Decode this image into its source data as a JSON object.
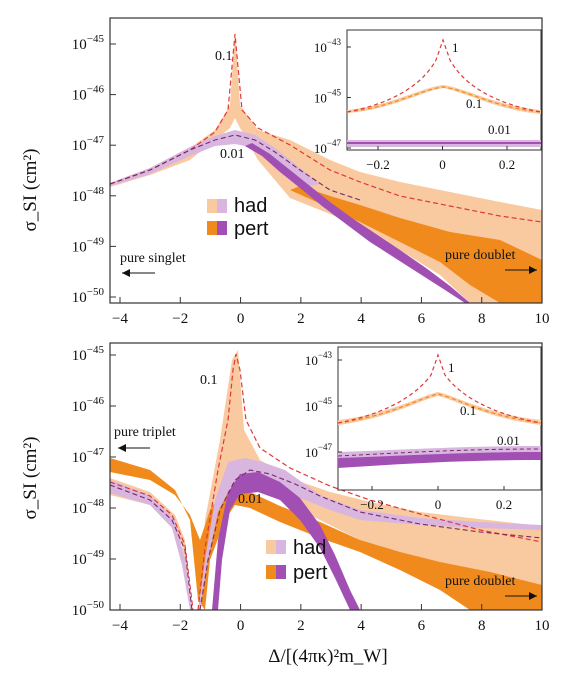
{
  "colors": {
    "orange_dark": "#f08a1c",
    "orange_light": "#f9c9a0",
    "purple_dark": "#a24fb4",
    "purple_light": "#d8b6e0",
    "red_line": "#e03838",
    "frame": "#333333"
  },
  "x_axis_label": "Δ/[(4πκ)²m_W]",
  "y_axis_label": "σ_SI (cm²)",
  "charts": [
    {
      "legend_had": "had",
      "legend_pert": "pert",
      "annotation_left": "pure singlet",
      "annotation_right": "pure doublet",
      "curve_label_01": "0.1",
      "curve_label_001": "0.01",
      "x_ticks": [
        "−4",
        "−2",
        "0",
        "2",
        "4",
        "6",
        "8",
        "10"
      ],
      "y_ticks": [
        {
          "base": "10",
          "exp": "−45"
        },
        {
          "base": "10",
          "exp": "−46"
        },
        {
          "base": "10",
          "exp": "−47"
        },
        {
          "base": "10",
          "exp": "−48"
        },
        {
          "base": "10",
          "exp": "−49"
        },
        {
          "base": "10",
          "exp": "−50"
        }
      ],
      "inset": {
        "label_1": "1",
        "label_01": "0.1",
        "label_001": "0.01",
        "x_ticks": [
          "−0.2",
          "0",
          "0.2"
        ],
        "y_ticks": [
          {
            "base": "10",
            "exp": "−43"
          },
          {
            "base": "10",
            "exp": "−45"
          },
          {
            "base": "10",
            "exp": "−47"
          }
        ]
      }
    },
    {
      "legend_had": "had",
      "legend_pert": "pert",
      "annotation_left": "pure triplet",
      "annotation_right": "pure doublet",
      "curve_label_01": "0.1",
      "curve_label_001": "0.01",
      "x_ticks": [
        "−4",
        "−2",
        "0",
        "2",
        "4",
        "6",
        "8",
        "10"
      ],
      "y_ticks": [
        {
          "base": "10",
          "exp": "−45"
        },
        {
          "base": "10",
          "exp": "−46"
        },
        {
          "base": "10",
          "exp": "−47"
        },
        {
          "base": "10",
          "exp": "−48"
        },
        {
          "base": "10",
          "exp": "−49"
        },
        {
          "base": "10",
          "exp": "−50"
        }
      ],
      "inset": {
        "label_1": "1",
        "label_01": "0.1",
        "label_001": "0.01",
        "x_ticks": [
          "−0.2",
          "0",
          "0.2"
        ],
        "y_ticks": [
          {
            "base": "10",
            "exp": "−43"
          },
          {
            "base": "10",
            "exp": "−45"
          },
          {
            "base": "10",
            "exp": "−47"
          }
        ]
      }
    }
  ],
  "chart_data": [
    {
      "type": "line",
      "xlim": [
        -4.3,
        10
      ],
      "ylim_log10": [
        -50,
        -44.7
      ],
      "y_scale": "log",
      "series": [
        {
          "name": "0.1",
          "x": [
            -4,
            -3,
            -2,
            -1,
            -0.5,
            -0.2,
            0,
            0.2,
            0.5,
            1,
            2,
            3,
            4,
            6,
            8,
            10
          ],
          "y": [
            -47.7,
            -47.5,
            -47.2,
            -46.7,
            -46.2,
            -45.6,
            -44.85,
            -45.6,
            -46.2,
            -46.7,
            -47.15,
            -47.5,
            -47.75,
            -48.15,
            -48.4,
            -48.55
          ]
        },
        {
          "name": "0.01",
          "x": [
            -4,
            -3,
            -2,
            -1,
            -0.5,
            0,
            0.5,
            1,
            2,
            3,
            4,
            6,
            8,
            10
          ],
          "y": [
            -47.7,
            -47.5,
            -47.3,
            -47.05,
            -46.98,
            -46.95,
            -46.98,
            -47.05,
            -47.45,
            -47.8,
            -48.05,
            -48.4,
            -48.65,
            -48.8
          ]
        }
      ]
    },
    {
      "type": "line",
      "xlim": [
        -4.3,
        10
      ],
      "ylim_log10": [
        -50,
        -44.7
      ],
      "y_scale": "log",
      "series": [
        {
          "name": "0.1",
          "x": [
            -4,
            -3,
            -2,
            -1.6,
            -1.3,
            -1,
            -0.5,
            -0.2,
            0,
            0.2,
            0.5,
            1,
            2,
            3,
            4,
            6,
            8,
            10
          ],
          "y": [
            -47.7,
            -47.95,
            -48.5,
            -49.6,
            -48.8,
            -48.05,
            -47.05,
            -46.2,
            -44.9,
            -46.2,
            -46.75,
            -47.1,
            -47.55,
            -47.9,
            -48.15,
            -48.45,
            -48.7,
            -48.85
          ]
        },
        {
          "name": "0.01",
          "x": [
            -4,
            -3,
            -2,
            -1.6,
            -1.3,
            -1,
            -0.5,
            0,
            0.5,
            1,
            2,
            3,
            4,
            5
          ],
          "y": [
            -47.75,
            -47.95,
            -48.5,
            -49.6,
            -48.9,
            -48.1,
            -47.55,
            -47.35,
            -47.3,
            -47.35,
            -47.75,
            -48.3,
            -48.9,
            -49.6
          ]
        }
      ]
    }
  ]
}
